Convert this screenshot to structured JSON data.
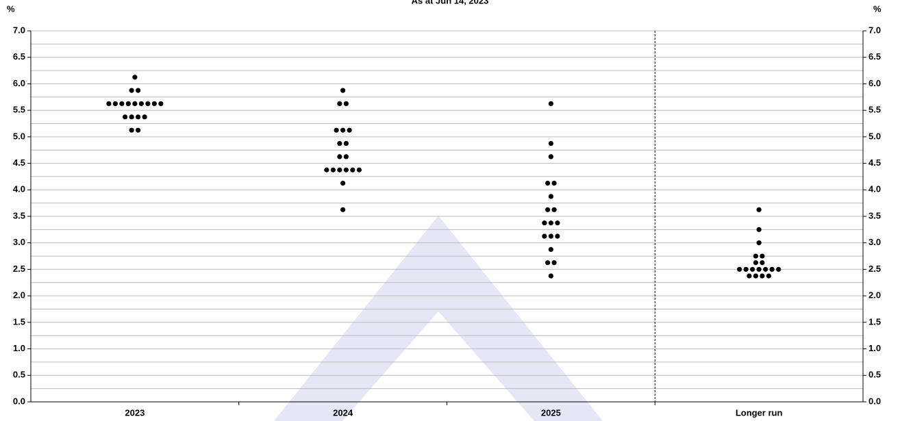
{
  "chart_data": {
    "type": "dot",
    "title": "As at Jun 14, 2023",
    "y_label": "%",
    "y2_label": "%",
    "categories": [
      "2023",
      "2024",
      "2025",
      "Longer run"
    ],
    "values": [
      [
        6.125,
        5.875,
        5.875,
        5.625,
        5.625,
        5.625,
        5.625,
        5.625,
        5.625,
        5.625,
        5.625,
        5.625,
        5.375,
        5.375,
        5.375,
        5.375,
        5.125,
        5.125
      ],
      [
        5.875,
        5.625,
        5.625,
        5.125,
        5.125,
        5.125,
        4.875,
        4.875,
        4.625,
        4.625,
        4.375,
        4.375,
        4.375,
        4.375,
        4.375,
        4.375,
        4.125,
        3.625
      ],
      [
        5.625,
        4.875,
        4.625,
        4.125,
        4.125,
        3.875,
        3.625,
        3.625,
        3.375,
        3.375,
        3.375,
        3.125,
        3.125,
        3.125,
        2.875,
        2.625,
        2.625,
        2.375
      ],
      [
        3.625,
        3.25,
        3.0,
        2.75,
        2.75,
        2.625,
        2.625,
        2.5,
        2.5,
        2.5,
        2.5,
        2.5,
        2.5,
        2.5,
        2.375,
        2.375,
        2.375,
        2.375
      ]
    ],
    "color": "#000000",
    "ylim": [
      0,
      7
    ],
    "yticks": [
      {
        "value": 0,
        "label": "0.0"
      },
      0.5,
      {
        "value": 1,
        "label": "1.0"
      },
      1.5,
      {
        "value": 2,
        "label": "2.0"
      },
      2.5,
      {
        "value": 3,
        "label": "3.0"
      },
      3.5,
      {
        "value": 4,
        "label": "4.0"
      },
      4.5,
      {
        "value": 5,
        "label": "5.0"
      },
      5.5,
      {
        "value": 6,
        "label": "6.0"
      },
      6.5,
      {
        "value": 7,
        "label": "7.0"
      }
    ],
    "minor_yticks": [
      0.25,
      0.75,
      1.25,
      1.75,
      2.25,
      2.75,
      3.25,
      3.75,
      4.25,
      4.75,
      5.25,
      5.75,
      6.25,
      6.75
    ],
    "grid": true
  }
}
